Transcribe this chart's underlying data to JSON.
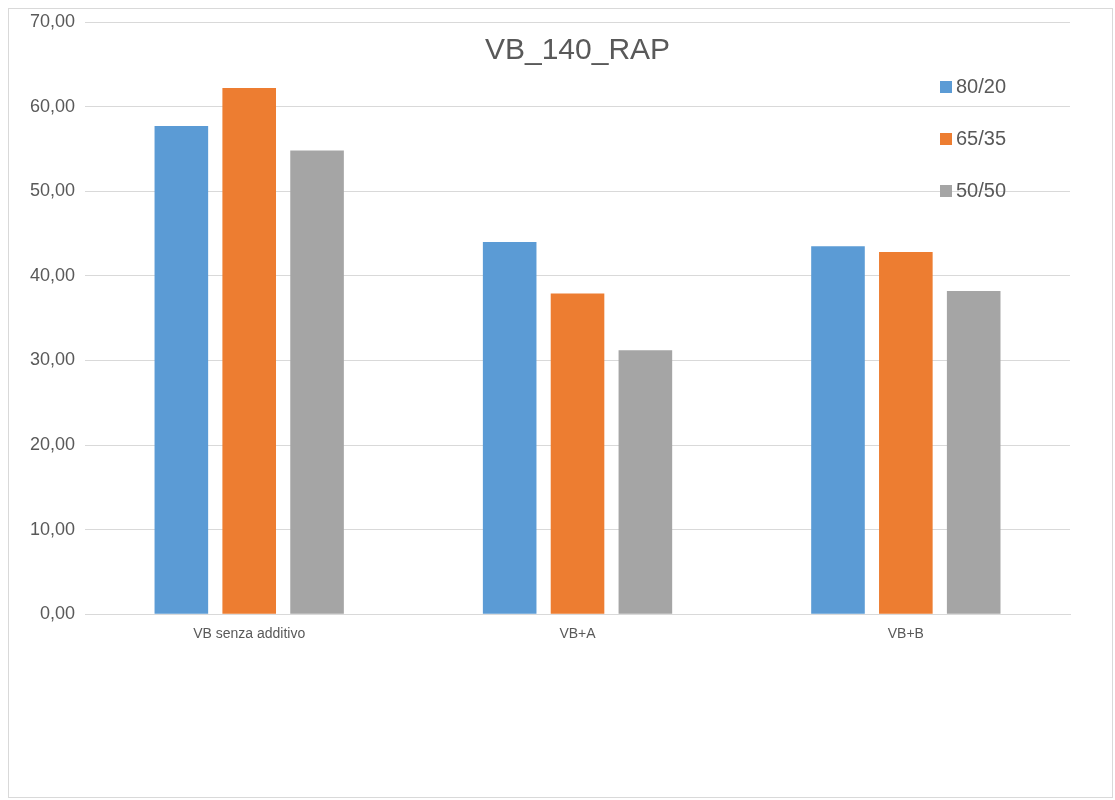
{
  "chart_data": {
    "type": "bar",
    "title": "VB_140_RAP",
    "categories": [
      "VB senza additivo",
      "VB+A",
      "VB+B"
    ],
    "series": [
      {
        "name": "80/20",
        "color": "#5b9bd5",
        "values": [
          57.7,
          44.0,
          43.5
        ]
      },
      {
        "name": "65/35",
        "color": "#ed7d31",
        "values": [
          62.2,
          37.9,
          42.8
        ]
      },
      {
        "name": "50/50",
        "color": "#a5a5a5",
        "values": [
          54.8,
          31.2,
          38.2
        ]
      }
    ],
    "ylim": [
      0,
      70
    ],
    "yticks": [
      {
        "value": 0,
        "label": "0,00"
      },
      {
        "value": 10,
        "label": "10,00"
      },
      {
        "value": 20,
        "label": "20,00"
      },
      {
        "value": 30,
        "label": "30,00"
      },
      {
        "value": 40,
        "label": "40,00"
      },
      {
        "value": 50,
        "label": "50,00"
      },
      {
        "value": 60,
        "label": "60,00"
      },
      {
        "value": 70,
        "label": "70,00"
      }
    ],
    "grid": "y",
    "legend": "top right"
  }
}
